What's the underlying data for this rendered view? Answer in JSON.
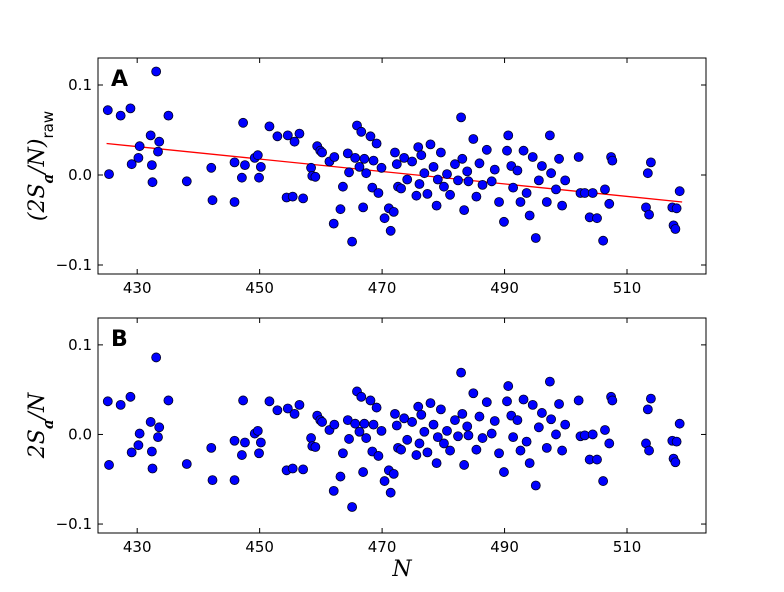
{
  "chart_data": [
    {
      "type": "scatter",
      "panel_label": "A",
      "ylabel": [
        "(2S",
        "a",
        "/N)",
        "raw"
      ],
      "xlim": [
        423.6,
        522.9
      ],
      "ylim": [
        -0.11,
        0.13
      ],
      "xticks": [
        430,
        450,
        470,
        490,
        510
      ],
      "yticks": [
        {
          "value": -0.1,
          "label": "−0.1"
        },
        {
          "value": 0,
          "label": "0.0"
        },
        0.1
      ],
      "color": "#0000ff",
      "x": [
        425.2,
        425.4,
        427.3,
        428.9,
        429.1,
        430.2,
        430.4,
        432.2,
        432.4,
        432.5,
        433.1,
        433.4,
        433.6,
        435.1,
        438.1,
        442.1,
        442.3,
        445.9,
        445.9,
        447.1,
        447.3,
        447.6,
        449.2,
        449.7,
        449.9,
        450.2,
        451.6,
        452.9,
        454.6,
        454.4,
        455.4,
        455.7,
        456.5,
        457.1,
        458.4,
        458.6,
        459.1,
        459.4,
        459.9,
        460.2,
        461.4,
        462.1,
        462.2,
        463.2,
        463.6,
        464.4,
        464.6,
        465.1,
        465.6,
        465.9,
        466.3,
        466.6,
        466.9,
        467.1,
        467.4,
        468.1,
        468.4,
        468.6,
        469.1,
        469.4,
        469.9,
        470.4,
        471.1,
        471.4,
        471.9,
        472.1,
        472.4,
        472.6,
        473.1,
        473.6,
        474.1,
        474.9,
        475.6,
        475.9,
        476.1,
        476.4,
        476.9,
        477.4,
        477.9,
        478.4,
        478.9,
        479.1,
        479.6,
        480.1,
        480.6,
        481.1,
        481.9,
        482.4,
        482.9,
        483.1,
        483.4,
        483.9,
        484.1,
        484.9,
        485.4,
        485.9,
        486.4,
        487.1,
        487.9,
        488.4,
        489.1,
        489.9,
        490.4,
        490.6,
        491.1,
        491.4,
        492.1,
        492.6,
        493.1,
        493.6,
        494.1,
        494.6,
        495.1,
        495.6,
        496.1,
        496.9,
        497.4,
        497.6,
        498.4,
        498.9,
        499.4,
        499.9,
        502.1,
        502.4,
        503.1,
        503.9,
        504.4,
        505.1,
        506.1,
        506.4,
        507.1,
        507.4,
        507.6,
        513.1,
        513.4,
        513.6,
        513.9,
        517.4,
        517.6,
        517.9,
        518.1,
        518.6
      ],
      "values": [
        0.072,
        0.001,
        0.066,
        0.074,
        0.012,
        0.019,
        0.032,
        0.044,
        0.011,
        -0.008,
        0.115,
        0.026,
        0.037,
        0.066,
        -0.007,
        0.008,
        -0.028,
        -0.03,
        0.014,
        -0.003,
        0.058,
        0.011,
        0.019,
        0.022,
        -0.003,
        0.009,
        0.054,
        0.043,
        0.044,
        -0.025,
        -0.024,
        0.037,
        0.046,
        -0.026,
        0.008,
        -0.001,
        -0.002,
        0.032,
        0.027,
        0.025,
        0.015,
        -0.054,
        0.02,
        -0.038,
        -0.013,
        0.024,
        0.003,
        -0.074,
        0.019,
        0.055,
        0.009,
        0.048,
        -0.036,
        0.018,
        0.002,
        0.043,
        -0.014,
        0.016,
        0.035,
        -0.02,
        0.008,
        -0.048,
        -0.037,
        -0.062,
        -0.041,
        0.025,
        0.012,
        -0.013,
        -0.015,
        0.019,
        -0.005,
        0.015,
        -0.023,
        0.031,
        -0.01,
        0.022,
        0.002,
        -0.021,
        0.034,
        0.009,
        -0.034,
        -0.005,
        0.025,
        -0.013,
        0.001,
        -0.022,
        0.012,
        -0.006,
        0.064,
        0.018,
        -0.039,
        0.004,
        -0.007,
        0.04,
        -0.024,
        0.013,
        -0.011,
        0.028,
        -0.007,
        0.006,
        -0.03,
        -0.052,
        0.027,
        0.044,
        0.01,
        -0.014,
        0.005,
        -0.03,
        0.027,
        -0.02,
        -0.045,
        0.02,
        -0.07,
        -0.006,
        0.01,
        -0.03,
        0.044,
        0.002,
        -0.016,
        0.018,
        -0.034,
        -0.006,
        0.02,
        -0.02,
        -0.02,
        -0.047,
        -0.02,
        -0.048,
        -0.073,
        -0.016,
        -0.032,
        0.02,
        0.016,
        -0.036,
        0.002,
        -0.044,
        0.014,
        -0.036,
        -0.056,
        -0.06,
        -0.037,
        -0.018
      ],
      "fit_line": {
        "x": [
          425,
          519
        ],
        "values": [
          0.035,
          -0.03
        ],
        "color": "#ff0000"
      }
    },
    {
      "type": "scatter",
      "panel_label": "B",
      "ylabel": [
        "2S",
        "a",
        "/N"
      ],
      "xlabel": "N",
      "xlim": [
        423.6,
        522.9
      ],
      "ylim": [
        -0.11,
        0.13
      ],
      "xticks": [
        430,
        450,
        470,
        490,
        510
      ],
      "yticks": [
        {
          "value": -0.1,
          "label": "−0.1"
        },
        {
          "value": 0,
          "label": "0.0"
        },
        0.1
      ],
      "color": "#0000ff",
      "x": [
        425.2,
        425.4,
        427.3,
        428.9,
        429.1,
        430.2,
        430.4,
        432.2,
        432.4,
        432.5,
        433.1,
        433.4,
        433.6,
        435.1,
        438.1,
        442.1,
        442.3,
        445.9,
        445.9,
        447.1,
        447.3,
        447.6,
        449.2,
        449.7,
        449.9,
        450.2,
        451.6,
        452.9,
        454.6,
        454.4,
        455.4,
        455.7,
        456.5,
        457.1,
        458.4,
        458.6,
        459.1,
        459.4,
        459.9,
        460.2,
        461.4,
        462.1,
        462.2,
        463.2,
        463.6,
        464.4,
        464.6,
        465.1,
        465.6,
        465.9,
        466.3,
        466.6,
        466.9,
        467.1,
        467.4,
        468.1,
        468.4,
        468.6,
        469.1,
        469.4,
        469.9,
        470.4,
        471.1,
        471.4,
        471.9,
        472.1,
        472.4,
        472.6,
        473.1,
        473.6,
        474.1,
        474.9,
        475.6,
        475.9,
        476.1,
        476.4,
        476.9,
        477.4,
        477.9,
        478.4,
        478.9,
        479.1,
        479.6,
        480.1,
        480.6,
        481.1,
        481.9,
        482.4,
        482.9,
        483.1,
        483.4,
        483.9,
        484.1,
        484.9,
        485.4,
        485.9,
        486.4,
        487.1,
        487.9,
        488.4,
        489.1,
        489.9,
        490.4,
        490.6,
        491.1,
        491.4,
        492.1,
        492.6,
        493.1,
        493.6,
        494.1,
        494.6,
        495.1,
        495.6,
        496.1,
        496.9,
        497.4,
        497.6,
        498.4,
        498.9,
        499.4,
        499.9,
        502.1,
        502.4,
        503.1,
        503.9,
        504.4,
        505.1,
        506.1,
        506.4,
        507.1,
        507.4,
        507.6,
        513.1,
        513.4,
        513.6,
        513.9,
        517.4,
        517.6,
        517.9,
        518.1,
        518.6
      ],
      "values": [
        0.037,
        -0.034,
        0.033,
        0.042,
        -0.02,
        -0.012,
        0.001,
        0.014,
        -0.019,
        -0.038,
        0.086,
        -0.003,
        0.008,
        0.038,
        -0.033,
        -0.015,
        -0.051,
        -0.051,
        -0.007,
        -0.023,
        0.038,
        -0.009,
        0.001,
        0.004,
        -0.021,
        -0.009,
        0.037,
        0.027,
        0.029,
        -0.04,
        -0.038,
        0.023,
        0.033,
        -0.039,
        -0.004,
        -0.013,
        -0.014,
        0.021,
        0.016,
        0.014,
        0.005,
        -0.063,
        0.011,
        -0.047,
        -0.021,
        0.016,
        -0.005,
        -0.081,
        0.012,
        0.048,
        0.003,
        0.042,
        -0.042,
        0.012,
        -0.004,
        0.038,
        -0.019,
        0.011,
        0.03,
        -0.024,
        0.004,
        -0.052,
        -0.04,
        -0.065,
        -0.044,
        0.023,
        0.01,
        -0.015,
        -0.017,
        0.018,
        -0.006,
        0.014,
        -0.023,
        0.031,
        -0.01,
        0.022,
        0.003,
        -0.02,
        0.035,
        0.011,
        -0.032,
        -0.003,
        0.028,
        -0.01,
        0.004,
        -0.018,
        0.016,
        -0.002,
        0.069,
        0.023,
        -0.034,
        0.009,
        -0.001,
        0.046,
        -0.017,
        0.02,
        -0.004,
        0.036,
        0.001,
        0.015,
        -0.021,
        -0.042,
        0.037,
        0.054,
        0.021,
        -0.003,
        0.016,
        -0.018,
        0.039,
        -0.008,
        -0.032,
        0.033,
        -0.057,
        0.008,
        0.024,
        -0.015,
        0.059,
        0.017,
        0,
        0.034,
        -0.018,
        0.011,
        0.038,
        -0.002,
        -0.001,
        -0.028,
        0,
        -0.028,
        -0.052,
        0.005,
        -0.01,
        0.042,
        0.038,
        -0.01,
        0.028,
        -0.018,
        0.04,
        -0.007,
        -0.027,
        -0.031,
        -0.008,
        0.012
      ]
    }
  ]
}
